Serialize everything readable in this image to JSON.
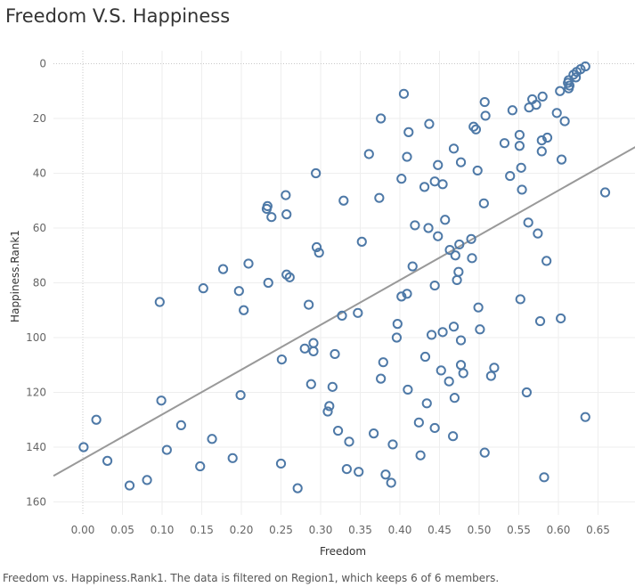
{
  "chart_title": "Freedom V.S. Happiness",
  "caption": "Freedom vs. Happiness.Rank1.  The data is filtered on Region1, which keeps 6 of 6 members.",
  "colors": {
    "point": "#4e79a7",
    "trend": "#999999",
    "grid": "#eeeeee",
    "zero_line": "#c8c8c8"
  },
  "chart_data": {
    "type": "scatter",
    "title": "Freedom V.S. Happiness",
    "xlabel": "Freedom",
    "ylabel": "Happiness.Rank1",
    "xlim": [
      -0.04,
      0.7
    ],
    "ylim": [
      0,
      160
    ],
    "y_reversed": true,
    "grid": true,
    "x_ticks": [
      "0.00",
      "0.05",
      "0.10",
      "0.15",
      "0.20",
      "0.25",
      "0.30",
      "0.35",
      "0.40",
      "0.45",
      "0.50",
      "0.55",
      "0.60",
      "0.65"
    ],
    "y_ticks": [
      "0",
      "20",
      "40",
      "60",
      "80",
      "100",
      "120",
      "140",
      "160"
    ],
    "trend_line": {
      "x": [
        -0.037,
        0.699
      ],
      "y": [
        150.5,
        30.1
      ]
    },
    "points": [
      [
        0.634,
        1
      ],
      [
        0.628,
        2
      ],
      [
        0.623,
        3
      ],
      [
        0.619,
        4
      ],
      [
        0.622,
        5
      ],
      [
        0.613,
        6
      ],
      [
        0.612,
        7
      ],
      [
        0.614,
        8
      ],
      [
        0.613,
        9
      ],
      [
        0.602,
        10
      ],
      [
        0.405,
        11
      ],
      [
        0.58,
        12
      ],
      [
        0.567,
        13
      ],
      [
        0.507,
        14
      ],
      [
        0.572,
        15
      ],
      [
        0.563,
        16
      ],
      [
        0.542,
        17
      ],
      [
        0.598,
        18
      ],
      [
        0.508,
        19
      ],
      [
        0.376,
        20
      ],
      [
        0.608,
        21
      ],
      [
        0.437,
        22
      ],
      [
        0.493,
        23
      ],
      [
        0.496,
        24
      ],
      [
        0.411,
        25
      ],
      [
        0.551,
        26
      ],
      [
        0.586,
        27
      ],
      [
        0.579,
        28
      ],
      [
        0.532,
        29
      ],
      [
        0.551,
        30
      ],
      [
        0.468,
        31
      ],
      [
        0.579,
        32
      ],
      [
        0.361,
        33
      ],
      [
        0.409,
        34
      ],
      [
        0.604,
        35
      ],
      [
        0.477,
        36
      ],
      [
        0.448,
        37
      ],
      [
        0.553,
        38
      ],
      [
        0.498,
        39
      ],
      [
        0.294,
        40
      ],
      [
        0.539,
        41
      ],
      [
        0.402,
        42
      ],
      [
        0.444,
        43
      ],
      [
        0.454,
        44
      ],
      [
        0.431,
        45
      ],
      [
        0.554,
        46
      ],
      [
        0.659,
        47
      ],
      [
        0.256,
        48
      ],
      [
        0.374,
        49
      ],
      [
        0.329,
        50
      ],
      [
        0.506,
        51
      ],
      [
        0.233,
        52
      ],
      [
        0.232,
        53
      ],
      [
        0.257,
        55
      ],
      [
        0.238,
        56
      ],
      [
        0.457,
        57
      ],
      [
        0.562,
        58
      ],
      [
        0.419,
        59
      ],
      [
        0.436,
        60
      ],
      [
        0.574,
        62
      ],
      [
        0.448,
        63
      ],
      [
        0.49,
        64
      ],
      [
        0.352,
        65
      ],
      [
        0.475,
        66
      ],
      [
        0.295,
        67
      ],
      [
        0.463,
        68
      ],
      [
        0.298,
        69
      ],
      [
        0.47,
        70
      ],
      [
        0.491,
        71
      ],
      [
        0.585,
        72
      ],
      [
        0.209,
        73
      ],
      [
        0.416,
        74
      ],
      [
        0.177,
        75
      ],
      [
        0.474,
        76
      ],
      [
        0.257,
        77
      ],
      [
        0.261,
        78
      ],
      [
        0.472,
        79
      ],
      [
        0.234,
        80
      ],
      [
        0.444,
        81
      ],
      [
        0.152,
        82
      ],
      [
        0.197,
        83
      ],
      [
        0.409,
        84
      ],
      [
        0.402,
        85
      ],
      [
        0.552,
        86
      ],
      [
        0.097,
        87
      ],
      [
        0.285,
        88
      ],
      [
        0.499,
        89
      ],
      [
        0.203,
        90
      ],
      [
        0.347,
        91
      ],
      [
        0.327,
        92
      ],
      [
        0.603,
        93
      ],
      [
        0.577,
        94
      ],
      [
        0.397,
        95
      ],
      [
        0.468,
        96
      ],
      [
        0.501,
        97
      ],
      [
        0.454,
        98
      ],
      [
        0.44,
        99
      ],
      [
        0.396,
        100
      ],
      [
        0.477,
        101
      ],
      [
        0.291,
        102
      ],
      [
        0.28,
        104
      ],
      [
        0.291,
        105
      ],
      [
        0.318,
        106
      ],
      [
        0.432,
        107
      ],
      [
        0.251,
        108
      ],
      [
        0.379,
        109
      ],
      [
        0.477,
        110
      ],
      [
        0.519,
        111
      ],
      [
        0.452,
        112
      ],
      [
        0.48,
        113
      ],
      [
        0.515,
        114
      ],
      [
        0.376,
        115
      ],
      [
        0.462,
        116
      ],
      [
        0.288,
        117
      ],
      [
        0.315,
        118
      ],
      [
        0.41,
        119
      ],
      [
        0.56,
        120
      ],
      [
        0.199,
        121
      ],
      [
        0.469,
        122
      ],
      [
        0.099,
        123
      ],
      [
        0.434,
        124
      ],
      [
        0.311,
        125
      ],
      [
        0.309,
        127
      ],
      [
        0.634,
        129
      ],
      [
        0.017,
        130
      ],
      [
        0.424,
        131
      ],
      [
        0.124,
        132
      ],
      [
        0.444,
        133
      ],
      [
        0.322,
        134
      ],
      [
        0.367,
        135
      ],
      [
        0.467,
        136
      ],
      [
        0.163,
        137
      ],
      [
        0.336,
        138
      ],
      [
        0.391,
        139
      ],
      [
        0.001,
        140
      ],
      [
        0.106,
        141
      ],
      [
        0.507,
        142
      ],
      [
        0.426,
        143
      ],
      [
        0.189,
        144
      ],
      [
        0.031,
        145
      ],
      [
        0.25,
        146
      ],
      [
        0.148,
        147
      ],
      [
        0.333,
        148
      ],
      [
        0.348,
        149
      ],
      [
        0.382,
        150
      ],
      [
        0.582,
        151
      ],
      [
        0.081,
        152
      ],
      [
        0.389,
        153
      ],
      [
        0.059,
        154
      ],
      [
        0.271,
        155
      ]
    ]
  }
}
